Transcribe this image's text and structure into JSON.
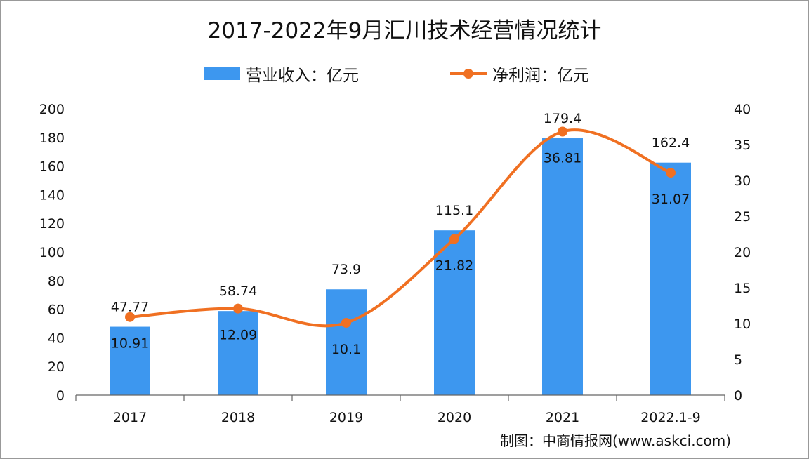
{
  "chart_data": {
    "type": "bar+line",
    "title": "2017-2022年9月汇川技术经营情况统计",
    "categories": [
      "2017",
      "2018",
      "2019",
      "2020",
      "2021",
      "2022.1-9"
    ],
    "series": [
      {
        "name": "营业收入：亿元",
        "type": "bar",
        "axis": "left",
        "values": [
          47.77,
          58.74,
          73.9,
          115.1,
          179.4,
          162.4
        ],
        "labels": [
          "47.77",
          "58.74",
          "73.9",
          "115.1",
          "179.4",
          "162.4"
        ],
        "color": "#3d97ef"
      },
      {
        "name": "净利润：亿元",
        "type": "line",
        "axis": "right",
        "values": [
          10.91,
          12.09,
          10.1,
          21.82,
          36.81,
          31.07
        ],
        "labels": [
          "10.91",
          "12.09",
          "10.1",
          "21.82",
          "36.81",
          "31.07"
        ],
        "color": "#f07022"
      }
    ],
    "left_axis": {
      "ylim": [
        0,
        200
      ],
      "ticks": [
        "0",
        "20",
        "40",
        "60",
        "80",
        "100",
        "120",
        "140",
        "160",
        "180",
        "200"
      ]
    },
    "right_axis": {
      "ylim": [
        0,
        40
      ],
      "ticks": [
        "0",
        "5",
        "10",
        "15",
        "20",
        "25",
        "30",
        "35",
        "40"
      ]
    },
    "grid": false,
    "legend": "top"
  },
  "source": "制图：中商情报网(www.askci.com)"
}
